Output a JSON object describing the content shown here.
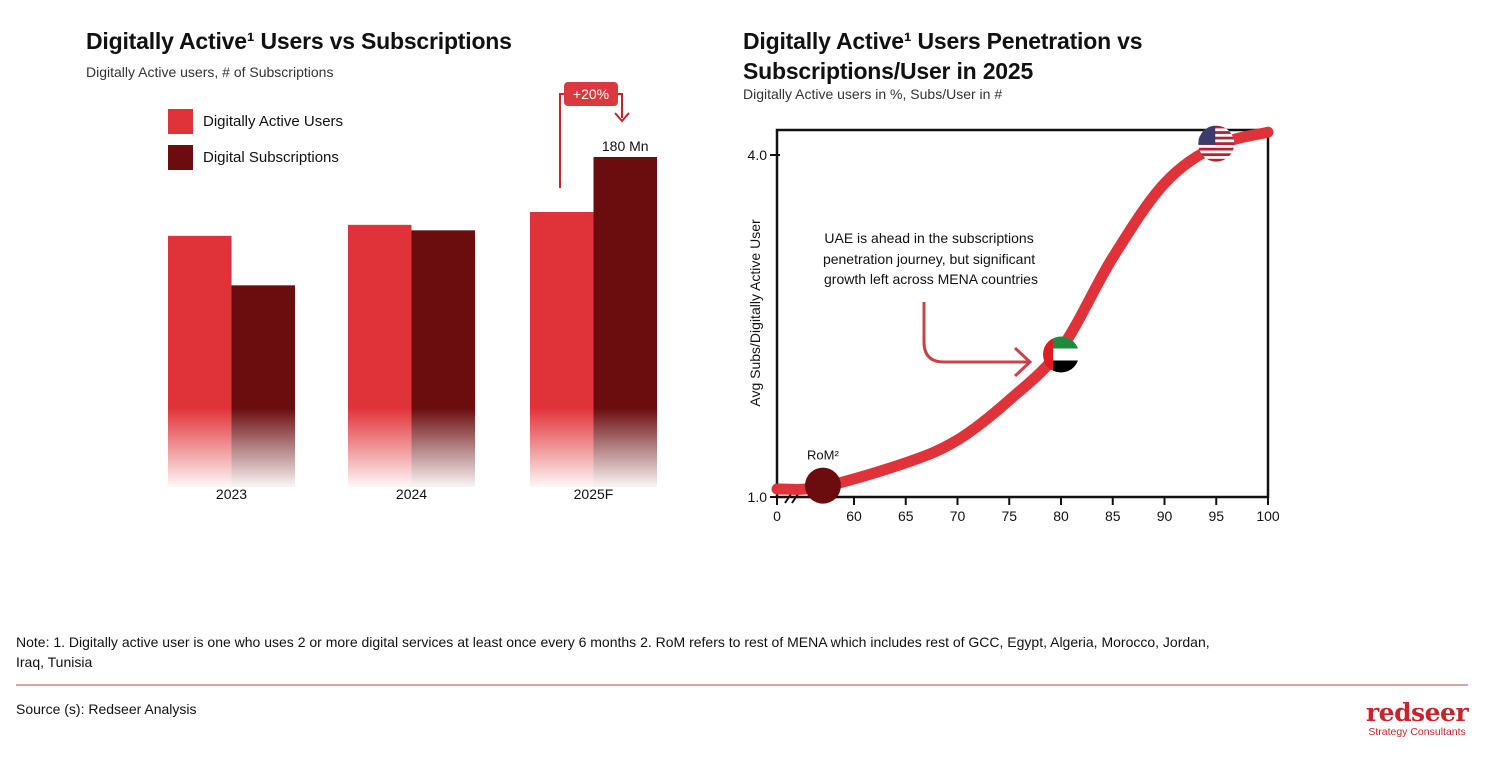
{
  "colors": {
    "users": "#e03339",
    "subscriptions": "#6b0c0f",
    "curve": "#e03339",
    "accent": "#c8242b"
  },
  "left": {
    "title": "Digitally Active¹ Users vs Subscriptions",
    "subtitle": "Digitally Active users, # of Subscriptions",
    "growth_badge": "+20%"
  },
  "right": {
    "title_line1": "Digitally Active¹ Users Penetration vs",
    "title_line2": "Subscriptions/User in 2025",
    "subtitle": "Digitally Active users in %, Subs/User in #",
    "annotation": [
      "UAE is ahead in the subscriptions",
      "penetration journey, but significant",
      "growth left across MENA countries"
    ]
  },
  "chart_data": [
    {
      "type": "bar",
      "categories": [
        "2023",
        "2024",
        "2025F"
      ],
      "series": [
        {
          "name": "Digitally Active Users",
          "values": [
            137,
            143,
            150
          ]
        },
        {
          "name": "Digital Subscriptions",
          "values": [
            110,
            140,
            180
          ]
        }
      ],
      "data_labels": [
        {
          "category": "2025F",
          "series": "Digital Subscriptions",
          "text": "180 Mn"
        }
      ],
      "annotations": [
        "+20%"
      ],
      "legend": "top-left",
      "grid": false,
      "ylim": [
        0,
        180
      ]
    },
    {
      "type": "line",
      "xlabel": "",
      "ylabel": "Avg Subs/Digitally Active User",
      "x_ticks": [
        "0",
        "60",
        "65",
        "70",
        "75",
        "80",
        "85",
        "90",
        "95",
        "100"
      ],
      "y_ticks": [
        "1.0",
        "4.0"
      ],
      "xlim": [
        0,
        100
      ],
      "ylim": [
        1.0,
        4.2
      ],
      "x_axis_break": true,
      "grid": false,
      "curve": {
        "x": [
          0,
          57,
          65,
          70,
          75,
          80,
          85,
          90,
          95,
          100
        ],
        "y": [
          1.07,
          1.09,
          1.3,
          1.5,
          1.85,
          2.3,
          3.1,
          3.75,
          4.08,
          4.2
        ]
      },
      "points": [
        {
          "label": "RoM²",
          "x": 57,
          "y": 1.1,
          "marker": "dark-circle"
        },
        {
          "label": "",
          "x": 80,
          "y": 2.25,
          "marker": "uae-flag"
        },
        {
          "label": "",
          "x": 95,
          "y": 4.1,
          "marker": "usa-flag"
        }
      ]
    }
  ],
  "footer": {
    "note_line1": "Note: 1. Digitally active user is one who uses 2 or more digital services at least once every 6 months 2. RoM refers to rest of MENA which includes rest of GCC, Egypt, Algeria, Morocco, Jordan,",
    "note_line2": "Iraq, Tunisia",
    "source": "Source (s): Redseer Analysis",
    "logo_word": "redseer",
    "logo_tagline": "Strategy Consultants"
  }
}
